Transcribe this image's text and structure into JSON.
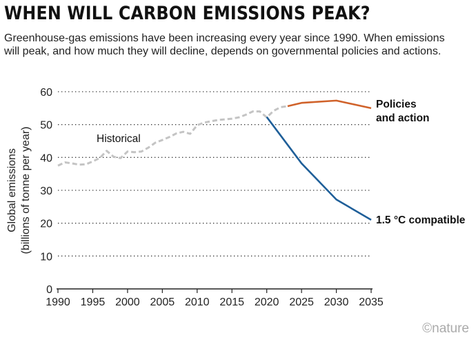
{
  "title": "WHEN WILL CARBON EMISSIONS PEAK?",
  "subtitle": "Greenhouse-gas emissions have been increasing every year since 1990. When emissions will peak, and how much they will decline, depends on governmental policies and actions.",
  "logo": "©nature",
  "chart_data": {
    "type": "line",
    "ylabel": "Global emissions (billions of tonne per year)",
    "ylim": [
      0,
      60
    ],
    "xlim": [
      1990,
      2035
    ],
    "yticks": [
      0,
      10,
      20,
      30,
      40,
      50,
      60
    ],
    "xticks": [
      1990,
      1995,
      2000,
      2005,
      2010,
      2015,
      2020,
      2025,
      2030,
      2035
    ],
    "grid": "horizontal dotted",
    "series": [
      {
        "name": "Historical",
        "color": "#c4c4c4",
        "style": "dashed",
        "x": [
          1990,
          1991,
          1992,
          1993,
          1994,
          1995,
          1996,
          1997,
          1998,
          1999,
          2000,
          2001,
          2002,
          2003,
          2004,
          2005,
          2006,
          2007,
          2008,
          2009,
          2010,
          2011,
          2012,
          2013,
          2014,
          2015,
          2016,
          2017,
          2018,
          2019,
          2020,
          2021,
          2022,
          2023
        ],
        "y": [
          37.5,
          38.5,
          38.2,
          37.8,
          37.9,
          38.8,
          39.8,
          42,
          40.2,
          39.8,
          41.8,
          41.6,
          41.8,
          43,
          44.5,
          45.3,
          46.2,
          47.3,
          47.8,
          47.2,
          49.8,
          50.6,
          51,
          51.4,
          51.6,
          51.8,
          52.2,
          53,
          54,
          54,
          52.2,
          54.2,
          55.3,
          55.6
        ]
      },
      {
        "name": "Policies and action",
        "color": "#d0622a",
        "style": "solid",
        "x": [
          2023,
          2025,
          2030,
          2035
        ],
        "y": [
          55.6,
          56.6,
          57.3,
          55
        ]
      },
      {
        "name": "1.5 °C compatible",
        "color": "#1f5f99",
        "style": "solid",
        "x": [
          2020,
          2025,
          2030,
          2035
        ],
        "y": [
          52.3,
          38.2,
          27.2,
          21
        ]
      }
    ]
  }
}
